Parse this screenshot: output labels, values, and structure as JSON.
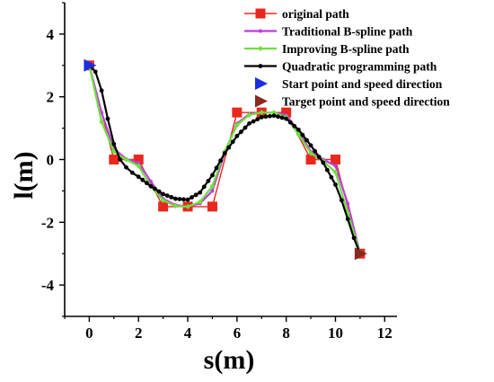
{
  "chart_data": {
    "type": "line",
    "xlabel": "s(m)",
    "ylabel": "l(m)",
    "xlim": [
      -1,
      12.5
    ],
    "ylim": [
      -5,
      5
    ],
    "xticks": [
      0,
      2,
      4,
      6,
      8,
      10,
      12
    ],
    "yticks": [
      -4,
      -2,
      0,
      2,
      4
    ],
    "grid": false,
    "legend_position": "top-right",
    "series": [
      {
        "name": "original path",
        "color": "#e8281e",
        "marker": "square",
        "points": [
          [
            0,
            3
          ],
          [
            1,
            0
          ],
          [
            2,
            0
          ],
          [
            3,
            -1.5
          ],
          [
            4,
            -1.5
          ],
          [
            5,
            -1.5
          ],
          [
            6,
            1.5
          ],
          [
            7,
            1.5
          ],
          [
            8,
            1.5
          ],
          [
            9,
            0
          ],
          [
            10,
            0
          ],
          [
            11,
            -3
          ]
        ]
      },
      {
        "name": "Traditional B-spline path",
        "color": "#c03cdc",
        "marker": "small-dot",
        "points": [
          [
            0,
            3
          ],
          [
            0.5,
            1.5
          ],
          [
            1,
            0.35
          ],
          [
            1.5,
            0.02
          ],
          [
            2,
            -0.1
          ],
          [
            2.5,
            -0.7
          ],
          [
            3,
            -1.25
          ],
          [
            3.5,
            -1.45
          ],
          [
            4,
            -1.5
          ],
          [
            4.5,
            -1.4
          ],
          [
            5,
            -1.0
          ],
          [
            5.5,
            0.2
          ],
          [
            6,
            1.15
          ],
          [
            6.5,
            1.45
          ],
          [
            7,
            1.5
          ],
          [
            7.5,
            1.5
          ],
          [
            8,
            1.42
          ],
          [
            8.5,
            0.9
          ],
          [
            9,
            0.25
          ],
          [
            9.5,
            0.0
          ],
          [
            10,
            -0.2
          ],
          [
            10.5,
            -1.4
          ],
          [
            11,
            -3
          ]
        ]
      },
      {
        "name": "Improving B-spline path",
        "color": "#6ee03c",
        "marker": "small-diamond",
        "points": [
          [
            0,
            3
          ],
          [
            0.5,
            1.2
          ],
          [
            1,
            0.25
          ],
          [
            1.5,
            0.0
          ],
          [
            2,
            -0.2
          ],
          [
            2.5,
            -0.85
          ],
          [
            3,
            -1.3
          ],
          [
            3.5,
            -1.48
          ],
          [
            4,
            -1.5
          ],
          [
            4.5,
            -1.35
          ],
          [
            5,
            -0.85
          ],
          [
            5.5,
            0.25
          ],
          [
            6,
            1.1
          ],
          [
            6.5,
            1.42
          ],
          [
            7,
            1.5
          ],
          [
            7.5,
            1.5
          ],
          [
            8,
            1.35
          ],
          [
            8.5,
            0.8
          ],
          [
            9,
            0.2
          ],
          [
            9.5,
            -0.05
          ],
          [
            10,
            -0.4
          ],
          [
            10.5,
            -1.7
          ],
          [
            11,
            -3
          ]
        ]
      },
      {
        "name": "Quadratic programming path",
        "color": "#000000",
        "marker": "dot",
        "points": [
          [
            0,
            3
          ],
          [
            0.25,
            2.8
          ],
          [
            0.5,
            2.2
          ],
          [
            0.75,
            1.3
          ],
          [
            1,
            0.5
          ],
          [
            1.25,
            0.0
          ],
          [
            1.5,
            -0.25
          ],
          [
            1.75,
            -0.42
          ],
          [
            2,
            -0.55
          ],
          [
            2.5,
            -0.85
          ],
          [
            3,
            -1.1
          ],
          [
            3.5,
            -1.25
          ],
          [
            4,
            -1.28
          ],
          [
            4.5,
            -1.05
          ],
          [
            5,
            -0.5
          ],
          [
            5.5,
            0.2
          ],
          [
            6,
            0.75
          ],
          [
            6.5,
            1.15
          ],
          [
            7,
            1.35
          ],
          [
            7.5,
            1.4
          ],
          [
            8,
            1.3
          ],
          [
            8.5,
            0.95
          ],
          [
            9,
            0.45
          ],
          [
            9.5,
            -0.1
          ],
          [
            10,
            -0.8
          ],
          [
            10.25,
            -1.3
          ],
          [
            10.5,
            -1.9
          ],
          [
            10.75,
            -2.5
          ],
          [
            11,
            -3
          ]
        ]
      },
      {
        "name": "Start point and speed direction",
        "color": "#1a2ee0",
        "marker": "triangle-right",
        "points": [
          [
            0,
            3
          ]
        ]
      },
      {
        "name": "Target point and speed direction",
        "color": "#8a2a1e",
        "marker": "triangle-right",
        "points": [
          [
            11,
            -3
          ]
        ]
      }
    ]
  }
}
